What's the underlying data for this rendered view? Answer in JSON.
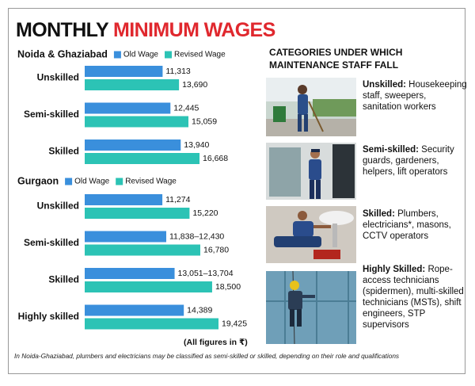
{
  "title": "MONTHLY",
  "title_highlight": "MINIMUM WAGES",
  "chart_data": [
    {
      "type": "bar",
      "orientation": "horizontal",
      "title": "Noida & Ghaziabad",
      "categories": [
        "Unskilled",
        "Semi-skilled",
        "Skilled"
      ],
      "series": [
        {
          "name": "Old Wage",
          "color": "#3a8fdc",
          "values": [
            11313,
            12445,
            13940
          ],
          "value_labels": [
            "11,313",
            "12,445",
            "13,940"
          ]
        },
        {
          "name": "Revised Wage",
          "color": "#2cc3b5",
          "values": [
            13690,
            15059,
            16668
          ],
          "value_labels": [
            "13,690",
            "15,059",
            "16,668"
          ]
        }
      ]
    },
    {
      "type": "bar",
      "orientation": "horizontal",
      "title": "Gurgaon",
      "categories": [
        "Unskilled",
        "Semi-skilled",
        "Skilled",
        "Highly skilled"
      ],
      "series": [
        {
          "name": "Old Wage",
          "color": "#3a8fdc",
          "values": [
            11274,
            11838,
            13051,
            14389
          ],
          "value_labels": [
            "11,274",
            "11,838–12,430",
            "13,051–13,704",
            "14,389"
          ]
        },
        {
          "name": "Revised Wage",
          "color": "#2cc3b5",
          "values": [
            15220,
            16780,
            18500,
            19425
          ],
          "value_labels": [
            "15,220",
            "16,780",
            "18,500",
            "19,425"
          ]
        }
      ]
    }
  ],
  "note": "(All figures in ₹)",
  "panel": {
    "title": "CATEGORIES UNDER WHICH MAINTENANCE STAFF FALL",
    "items": [
      {
        "label": "Unskilled:",
        "text": "Housekeeping staff, sweepers, sanitation workers"
      },
      {
        "label": "Semi-skilled:",
        "text": "Security guards, gardeners, helpers, lift operators"
      },
      {
        "label": "Skilled:",
        "text": "Plumbers, electricians*, masons, CCTV operators"
      },
      {
        "label": "Highly Skilled:",
        "text": "Rope-access technicians (spidermen), multi-skilled technicians (MSTs), shift engineers, STP supervisors"
      }
    ]
  },
  "footnote": "In Noida-Ghaziabad, plumbers and electricians may be classified as semi-skilled or skilled, depending on their role and qualifications"
}
